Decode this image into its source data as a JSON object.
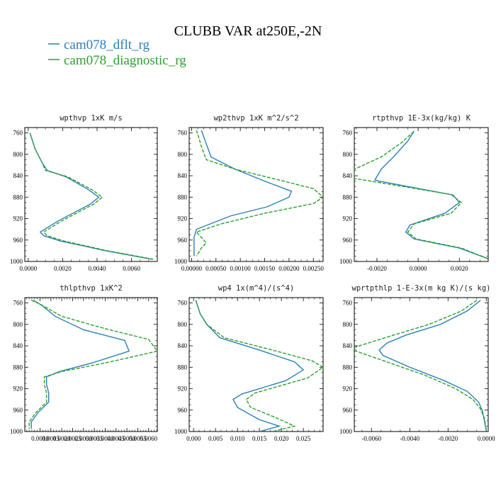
{
  "figure": {
    "title": "CLUBB VAR at250E,-2N",
    "legend": [
      {
        "label": "cam078_dflt_rg",
        "color": "#2c7fb8",
        "dash": false
      },
      {
        "label": "cam078_diagnostic_rg",
        "color": "#2ca02c",
        "dash": true
      }
    ]
  },
  "chart_data": [
    {
      "type": "line",
      "title": "wpthvp  1xK m/s",
      "xlim": [
        -0.0002,
        0.0075
      ],
      "ylim": [
        1000,
        750
      ],
      "xticks": [
        0.0,
        0.002,
        0.004,
        0.006
      ],
      "xtick_labels": [
        "0.0000",
        "0.0020",
        "0.0040",
        "0.0060"
      ],
      "yticks": [
        760,
        800,
        840,
        880,
        920,
        960,
        1000
      ],
      "ytick_labels": [
        "760",
        "800",
        "840",
        "880",
        "920",
        "960",
        "1000"
      ],
      "series": [
        {
          "name": "cam078_dflt_rg",
          "points": [
            [
              0.0001,
              760
            ],
            [
              0.0004,
              790
            ],
            [
              0.0008,
              815
            ],
            [
              0.0011,
              830
            ],
            [
              0.0022,
              842
            ],
            [
              0.0035,
              866
            ],
            [
              0.0041,
              880
            ],
            [
              0.0036,
              893
            ],
            [
              0.0017,
              925
            ],
            [
              0.0007,
              945
            ],
            [
              0.0009,
              952
            ],
            [
              0.0019,
              962
            ],
            [
              0.0045,
              980
            ],
            [
              0.0072,
              996
            ]
          ]
        },
        {
          "name": "cam078_diagnostic_rg",
          "points": [
            [
              0.0001,
              760
            ],
            [
              0.0004,
              790
            ],
            [
              0.0008,
              815
            ],
            [
              0.001,
              830
            ],
            [
              0.0023,
              842
            ],
            [
              0.0037,
              866
            ],
            [
              0.0043,
              880
            ],
            [
              0.0038,
              893
            ],
            [
              0.0019,
              925
            ],
            [
              0.0009,
              945
            ],
            [
              0.0011,
              952
            ],
            [
              0.0021,
              962
            ],
            [
              0.0046,
              980
            ],
            [
              0.0073,
              996
            ]
          ]
        }
      ]
    },
    {
      "type": "line",
      "title": "wp2thvp  1xK m^2/s^2",
      "xlim": [
        -5e-05,
        0.0027
      ],
      "ylim": [
        1000,
        750
      ],
      "xticks": [
        0.0,
        0.0005,
        0.001,
        0.0015,
        0.002,
        0.0025
      ],
      "xtick_labels": [
        "0.00000",
        "0.00050",
        "0.00100",
        "0.00150",
        "0.00200",
        "0.00250"
      ],
      "yticks": [
        760,
        800,
        840,
        880,
        920,
        960,
        1000
      ],
      "ytick_labels": [
        "760",
        "800",
        "840",
        "880",
        "920",
        "960",
        "1000"
      ],
      "series": [
        {
          "name": "cam078_dflt_rg",
          "points": [
            [
              0.0002,
              755
            ],
            [
              0.0003,
              780
            ],
            [
              0.0004,
              805
            ],
            [
              0.0009,
              828
            ],
            [
              0.0015,
              850
            ],
            [
              0.00205,
              869
            ],
            [
              0.002,
              880
            ],
            [
              0.00155,
              898
            ],
            [
              0.0008,
              915
            ],
            [
              0.0001,
              940
            ],
            [
              5e-05,
              955
            ],
            [
              5e-05,
              965
            ],
            [
              5e-05,
              990
            ]
          ]
        },
        {
          "name": "cam078_diagnostic_rg",
          "points": [
            [
              0.0001,
              755
            ],
            [
              0.0002,
              785
            ],
            [
              0.0003,
              810
            ],
            [
              0.0009,
              828
            ],
            [
              0.0018,
              848
            ],
            [
              0.0025,
              864
            ],
            [
              0.0027,
              880
            ],
            [
              0.0025,
              892
            ],
            [
              0.0015,
              910
            ],
            [
              0.0006,
              930
            ],
            [
              0.0001,
              945
            ],
            [
              0.0002,
              955
            ],
            [
              0.0003,
              965
            ],
            [
              0.0002,
              975
            ],
            [
              0.0001,
              990
            ]
          ]
        }
      ]
    },
    {
      "type": "line",
      "title": "rtpthvp  1E-3x(kg/kg) K",
      "xlim": [
        -0.0031,
        0.0034
      ],
      "ylim": [
        1000,
        750
      ],
      "xticks": [
        -0.002,
        0.0,
        0.002
      ],
      "xtick_labels": [
        "-0.0020",
        "0.0000",
        "0.0020"
      ],
      "yticks": [
        760,
        800,
        840,
        880,
        920,
        960,
        1000
      ],
      "ytick_labels": [
        "760",
        "800",
        "840",
        "880",
        "920",
        "960",
        "1000"
      ],
      "series": [
        {
          "name": "cam078_dflt_rg",
          "points": [
            [
              -0.0002,
              757
            ],
            [
              -0.0005,
              775
            ],
            [
              -0.0012,
              805
            ],
            [
              -0.0018,
              828
            ],
            [
              -0.0021,
              848
            ],
            [
              -0.0019,
              850
            ],
            [
              0.0017,
              876
            ],
            [
              0.002,
              890
            ],
            [
              0.0013,
              910
            ],
            [
              -0.0004,
              932
            ],
            [
              -0.0006,
              945
            ],
            [
              -0.0002,
              958
            ],
            [
              0.002,
              975
            ],
            [
              0.0034,
              995
            ]
          ]
        },
        {
          "name": "cam078_diagnostic_rg",
          "points": [
            [
              -0.0002,
              757
            ],
            [
              -0.0008,
              778
            ],
            [
              -0.0018,
              805
            ],
            [
              -0.0031,
              828
            ],
            [
              -0.0031,
              845
            ],
            [
              0.0016,
              875
            ],
            [
              0.0021,
              890
            ],
            [
              0.0016,
              910
            ],
            [
              -0.0002,
              930
            ],
            [
              -0.0005,
              945
            ],
            [
              -0.0001,
              958
            ],
            [
              0.0021,
              975
            ],
            [
              0.0034,
              995
            ]
          ]
        }
      ]
    },
    {
      "type": "line",
      "title": "thlpthvp  1xK^2",
      "xlim": [
        0.0003,
        0.0064
      ],
      "ylim": [
        1000,
        750
      ],
      "xticks": [
        0.001,
        0.0015,
        0.002,
        0.0025,
        0.003,
        0.0035,
        0.004,
        0.0045,
        0.005,
        0.0055,
        0.006
      ],
      "xtick_labels": [
        "0.0010",
        "0.0015",
        "0.0020",
        "0.0025",
        "0.0030",
        "0.0035",
        "0.0040",
        "0.0045",
        "0.0050",
        "0.0055",
        "0.0060"
      ],
      "yticks": [
        760,
        800,
        840,
        880,
        920,
        960,
        1000
      ],
      "ytick_labels": [
        "760",
        "800",
        "840",
        "880",
        "920",
        "960",
        "1000"
      ],
      "series": [
        {
          "name": "cam078_dflt_rg",
          "points": [
            [
              0.0007,
              755
            ],
            [
              0.0011,
              765
            ],
            [
              0.0017,
              785
            ],
            [
              0.003,
              810
            ],
            [
              0.0049,
              830
            ],
            [
              0.0051,
              850
            ],
            [
              0.0034,
              872
            ],
            [
              0.0019,
              888
            ],
            [
              0.0013,
              898
            ],
            [
              0.0013,
              912
            ],
            [
              0.0014,
              928
            ],
            [
              0.0014,
              945
            ],
            [
              0.0009,
              965
            ],
            [
              0.0006,
              982
            ],
            [
              0.0006,
              995
            ]
          ]
        },
        {
          "name": "cam078_diagnostic_rg",
          "points": [
            [
              0.0006,
              755
            ],
            [
              0.001,
              762
            ],
            [
              0.002,
              785
            ],
            [
              0.004,
              808
            ],
            [
              0.006,
              828
            ],
            [
              0.0064,
              850
            ],
            [
              0.004,
              872
            ],
            [
              0.002,
              888
            ],
            [
              0.0012,
              898
            ],
            [
              0.0012,
              912
            ],
            [
              0.0013,
              928
            ],
            [
              0.0013,
              945
            ],
            [
              0.0008,
              965
            ],
            [
              0.0005,
              982
            ],
            [
              0.0005,
              995
            ]
          ]
        }
      ]
    },
    {
      "type": "line",
      "title": "wp4  1x(m^4)/(s^4)",
      "xlim": [
        -0.001,
        0.0295
      ],
      "ylim": [
        1000,
        750
      ],
      "xticks": [
        0.0,
        0.005,
        0.01,
        0.015,
        0.02,
        0.025
      ],
      "xtick_labels": [
        "0.000",
        "0.005",
        "0.010",
        "0.015",
        "0.020",
        "0.025"
      ],
      "yticks": [
        760,
        800,
        840,
        880,
        920,
        960,
        1000
      ],
      "ytick_labels": [
        "760",
        "800",
        "840",
        "880",
        "920",
        "960",
        "1000"
      ],
      "series": [
        {
          "name": "cam078_dflt_rg",
          "points": [
            [
              0.0005,
              755
            ],
            [
              0.0015,
              780
            ],
            [
              0.003,
              800
            ],
            [
              0.006,
              825
            ],
            [
              0.015,
              848
            ],
            [
              0.023,
              870
            ],
            [
              0.025,
              885
            ],
            [
              0.021,
              905
            ],
            [
              0.011,
              930
            ],
            [
              0.009,
              940
            ],
            [
              0.01,
              955
            ],
            [
              0.015,
              978
            ],
            [
              0.0195,
              990
            ],
            [
              0.015,
              1000
            ]
          ]
        },
        {
          "name": "cam078_diagnostic_rg",
          "points": [
            [
              0.0005,
              755
            ],
            [
              0.0015,
              780
            ],
            [
              0.003,
              800
            ],
            [
              0.007,
              825
            ],
            [
              0.018,
              848
            ],
            [
              0.027,
              868
            ],
            [
              0.0295,
              880
            ],
            [
              0.026,
              900
            ],
            [
              0.014,
              928
            ],
            [
              0.012,
              940
            ],
            [
              0.013,
              955
            ],
            [
              0.019,
              975
            ],
            [
              0.023,
              990
            ],
            [
              0.018,
              1000
            ]
          ]
        }
      ]
    },
    {
      "type": "line",
      "title": "wprtpthlp  1-E-3x(m kg K)/(s kg)",
      "xlim": [
        -0.0069,
        0.0001
      ],
      "ylim": [
        1000,
        750
      ],
      "xticks": [
        -0.006,
        -0.004,
        -0.002,
        0.0
      ],
      "xtick_labels": [
        "-0.0060",
        "-0.0040",
        "-0.0020",
        "0.0000"
      ],
      "yticks": [
        760,
        800,
        840,
        880,
        920,
        960,
        1000
      ],
      "ytick_labels": [
        "760",
        "800",
        "840",
        "880",
        "920",
        "960",
        "1000"
      ],
      "series": [
        {
          "name": "cam078_dflt_rg",
          "points": [
            [
              -0.0003,
              755
            ],
            [
              -0.001,
              775
            ],
            [
              -0.0024,
              800
            ],
            [
              -0.0042,
              820
            ],
            [
              -0.0052,
              835
            ],
            [
              -0.0056,
              848
            ],
            [
              -0.0054,
              858
            ],
            [
              -0.004,
              880
            ],
            [
              -0.0022,
              905
            ],
            [
              -0.001,
              925
            ],
            [
              -0.0004,
              945
            ],
            [
              -0.0002,
              962
            ],
            [
              -0.0001,
              980
            ],
            [
              0.0,
              998
            ]
          ]
        },
        {
          "name": "cam078_diagnostic_rg",
          "points": [
            [
              -0.0005,
              755
            ],
            [
              -0.0013,
              775
            ],
            [
              -0.003,
              800
            ],
            [
              -0.0053,
              825
            ],
            [
              -0.0069,
              843
            ],
            [
              -0.0068,
              850
            ],
            [
              -0.0052,
              870
            ],
            [
              -0.0032,
              895
            ],
            [
              -0.0016,
              920
            ],
            [
              -0.0007,
              940
            ],
            [
              -0.0003,
              958
            ],
            [
              -0.0001,
              975
            ],
            [
              0.0,
              998
            ]
          ]
        }
      ]
    }
  ]
}
